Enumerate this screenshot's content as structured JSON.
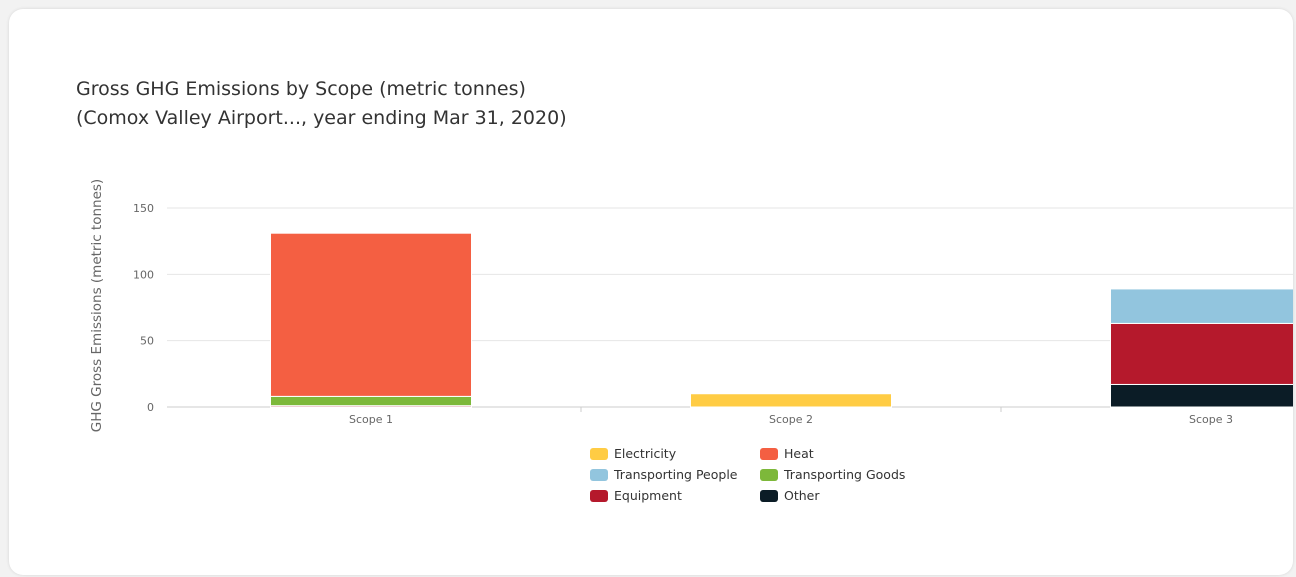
{
  "chart_data": {
    "type": "bar",
    "stacked": true,
    "title": "Gross GHG Emissions by Scope (metric tonnes)",
    "subtitle": "(Comox Valley Airport..., year ending Mar 31, 2020)",
    "xlabel": "",
    "ylabel": "GHG Gross Emissions (metric tonnes)",
    "ylim": [
      0,
      150
    ],
    "yticks": [
      0,
      50,
      100,
      150
    ],
    "grid": true,
    "legend_position": "bottom",
    "categories": [
      "Scope 1",
      "Scope 2",
      "Scope 3"
    ],
    "series": [
      {
        "name": "Other",
        "color": "#0b1c26",
        "values": [
          0,
          0,
          17
        ]
      },
      {
        "name": "Equipment",
        "color": "#b5192c",
        "values": [
          1,
          0,
          46
        ]
      },
      {
        "name": "Transporting Goods",
        "color": "#7db83a",
        "values": [
          7,
          0,
          0
        ]
      },
      {
        "name": "Transporting People",
        "color": "#92c5de",
        "values": [
          0,
          0,
          26
        ]
      },
      {
        "name": "Heat",
        "color": "#f45f42",
        "values": [
          123,
          0,
          0
        ]
      },
      {
        "name": "Electricity",
        "color": "#ffcc44",
        "values": [
          0,
          10,
          0
        ]
      }
    ],
    "legend_order": [
      "Electricity",
      "Heat",
      "Transporting People",
      "Transporting Goods",
      "Equipment",
      "Other"
    ]
  }
}
